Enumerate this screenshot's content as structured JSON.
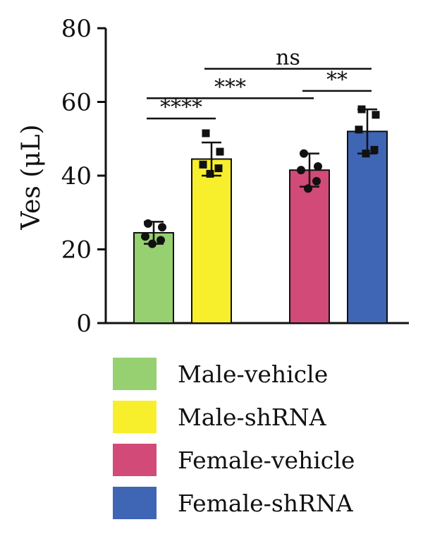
{
  "chart_data": {
    "type": "bar",
    "ylabel": "Ves (μL)",
    "ylim": [
      0,
      80
    ],
    "yticks": [
      0,
      20,
      40,
      60,
      80
    ],
    "categories": [
      "Male-vehicle",
      "Male-shRNA",
      "Female-vehicle",
      "Female-shRNA"
    ],
    "values": [
      24.5,
      44.5,
      41.5,
      52
    ],
    "error": [
      3,
      4.5,
      4.5,
      6
    ],
    "colors": [
      "#96d070",
      "#f8ef2c",
      "#d24a78",
      "#3f65b5"
    ],
    "points": [
      [
        27,
        26,
        23.5,
        22.5,
        21.5
      ],
      [
        51.5,
        46.5,
        43,
        42,
        40.5
      ],
      [
        46,
        42.5,
        41.5,
        38.5,
        36.5
      ],
      [
        58,
        56.5,
        52.5,
        47,
        46
      ]
    ],
    "significance": [
      {
        "from": 0,
        "to": 1,
        "label": "****",
        "y": 55.5
      },
      {
        "from": 0,
        "to": 2,
        "label": "***",
        "y": 61
      },
      {
        "from": 2,
        "to": 3,
        "label": "**",
        "y": 63
      },
      {
        "from": 1,
        "to": 3,
        "label": "ns",
        "y": 69
      }
    ],
    "legend": {
      "items": [
        {
          "label": "Male-vehicle",
          "color": "#96d070"
        },
        {
          "label": "Male-shRNA",
          "color": "#f8ef2c"
        },
        {
          "label": "Female-vehicle",
          "color": "#d24a78"
        },
        {
          "label": "Female-shRNA",
          "color": "#3f65b5"
        }
      ]
    }
  }
}
